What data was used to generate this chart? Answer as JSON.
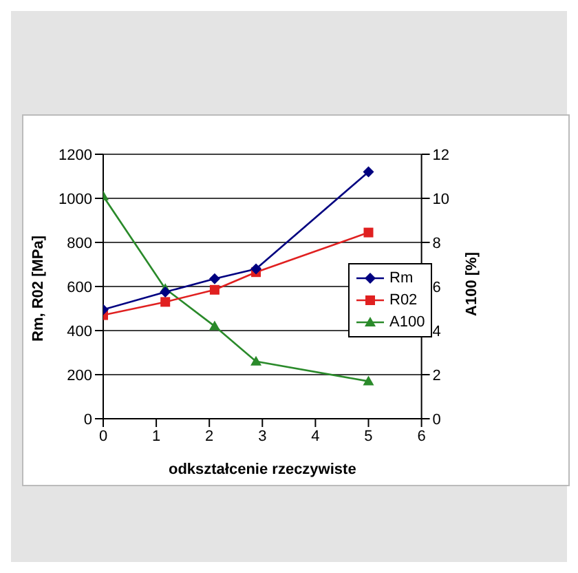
{
  "chart_data": {
    "type": "line",
    "xlabel": "odkształcenie rzeczywiste",
    "ylabel": "Rm, R02 [MPa]",
    "y2label": "A100 [%]",
    "x": [
      0,
      1.17,
      2.1,
      2.88,
      5
    ],
    "series": [
      {
        "name": "Rm",
        "color": "#000080",
        "values": [
          495,
          575,
          635,
          680,
          1120
        ],
        "marker": "diamond"
      },
      {
        "name": "R02",
        "color": "#e02020",
        "values": [
          470,
          530,
          585,
          665,
          845
        ],
        "marker": "square"
      },
      {
        "name": "A100",
        "color": "#2a8a2a",
        "values": [
          10.1,
          5.9,
          4.2,
          2.6,
          1.7
        ],
        "marker": "triangle",
        "axis": "y2"
      }
    ],
    "xlim": [
      0,
      6
    ],
    "xticks": [
      0,
      1,
      2,
      3,
      4,
      5,
      6
    ],
    "ylim": [
      0,
      1200
    ],
    "yticks": [
      0,
      200,
      400,
      600,
      800,
      1000,
      1200
    ],
    "y2lim": [
      0,
      12
    ],
    "y2ticks": [
      0,
      2,
      4,
      6,
      8,
      10,
      12
    ],
    "grid": "y",
    "legend": "right"
  }
}
